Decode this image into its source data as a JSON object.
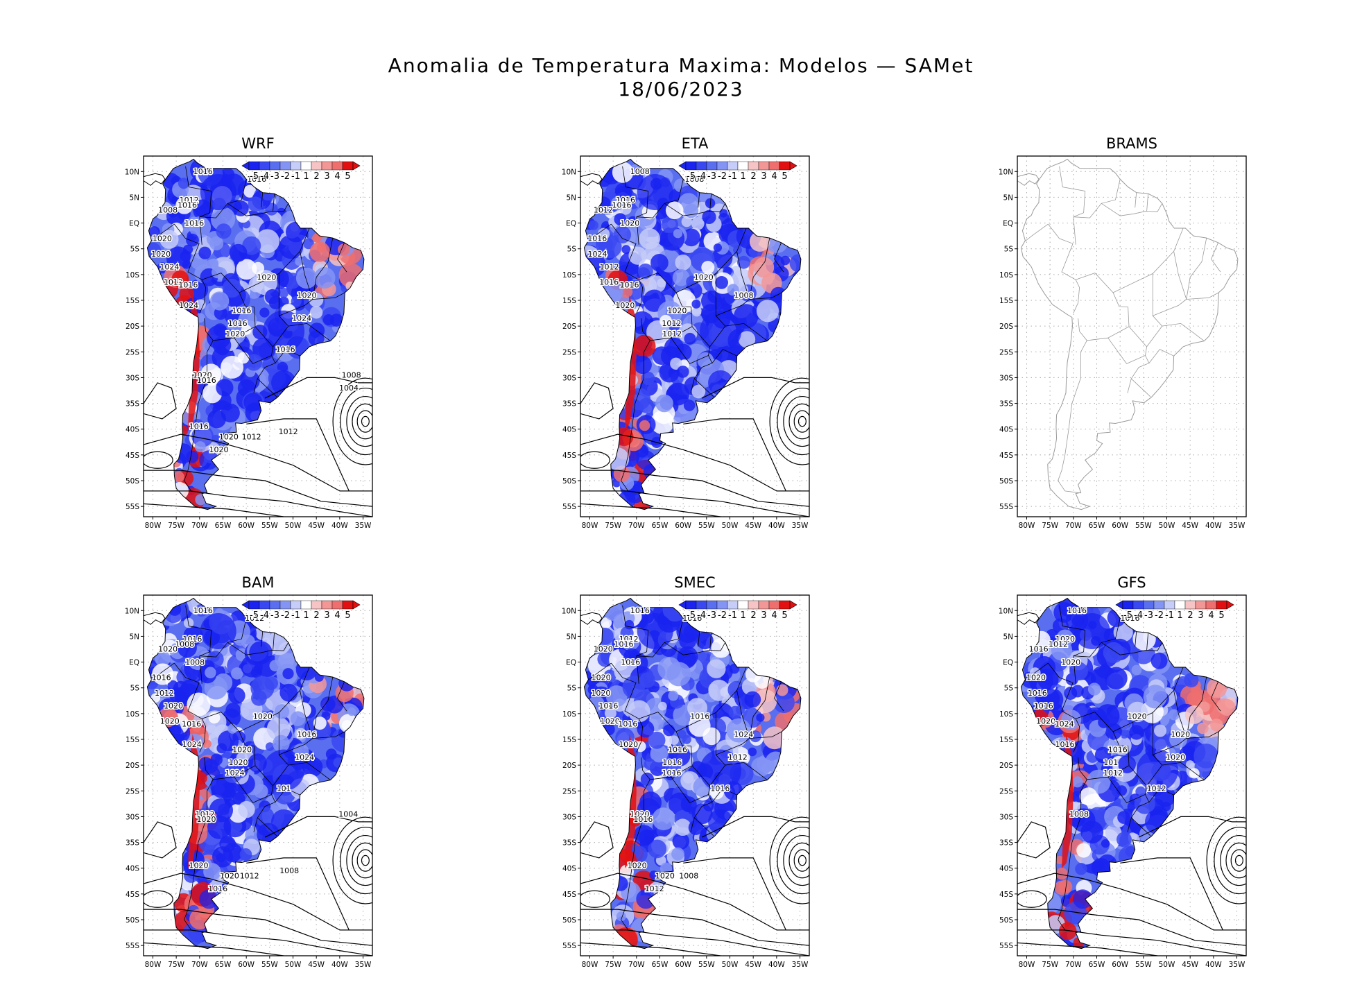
{
  "title": {
    "line1": "Anomalia de Temperatura Maxima: Modelos — SAMet",
    "line2": "18/06/2023"
  },
  "colors": {
    "strong_cold": "#1a23f0",
    "cold": "#5a6ef0",
    "light_cold": "#c6cdf8",
    "light_warm": "#f6c4c4",
    "warm": "#ef6f6f",
    "strong_warm": "#e21010",
    "isobar": "#000000",
    "empty_coast": "#9a9a9a"
  },
  "axes": {
    "lat_labels": [
      "10N",
      "5N",
      "EQ",
      "5S",
      "10S",
      "15S",
      "20S",
      "25S",
      "30S",
      "35S",
      "40S",
      "45S",
      "50S",
      "55S"
    ],
    "lon_labels": [
      "80W",
      "75W",
      "70W",
      "65W",
      "60W",
      "55W",
      "50W",
      "45W",
      "40W",
      "35W"
    ]
  },
  "colorbar": {
    "labels": [
      "-5",
      "-4",
      "-3",
      "-2",
      "-1",
      "1",
      "2",
      "3",
      "4",
      "5"
    ],
    "colors": [
      "#1a23f0",
      "#3a48f2",
      "#5a6ef0",
      "#8494f4",
      "#c6cdf8",
      "#ffffff",
      "#f6c4c4",
      "#f39696",
      "#ef6f6f",
      "#e21010"
    ]
  },
  "panels": [
    {
      "name": "WRF",
      "has_data": true,
      "warm_ne": 0.45,
      "isobars": [
        "1016",
        "1016",
        "1012",
        "1016",
        "1008",
        "1016",
        "1020",
        "1020",
        "1024",
        "1012",
        "1016",
        "1024",
        "1016",
        "1016",
        "1020",
        "1020",
        "1020",
        "1024",
        "1016",
        "1020",
        "1016",
        "1016",
        "1020",
        "1020",
        "1012",
        "1012",
        "1008",
        "1004"
      ]
    },
    {
      "name": "ETA",
      "has_data": true,
      "warm_ne": 0.35,
      "isobars": [
        "1008",
        "1008",
        "1016",
        "1016",
        "1012",
        "1020",
        "1016",
        "1024",
        "1012",
        "1016",
        "1016",
        "1020",
        "1020",
        "1012",
        "1012",
        "1020",
        "1008"
      ]
    },
    {
      "name": "BRAMS",
      "has_data": false,
      "warm_ne": 0,
      "isobars": []
    },
    {
      "name": "BAM",
      "has_data": true,
      "warm_ne": 0.2,
      "isobars": [
        "1016",
        "1012",
        "1016",
        "1008",
        "1020",
        "1008",
        "1016",
        "1012",
        "1020",
        "1020",
        "1016",
        "1024",
        "1020",
        "1020",
        "1024",
        "1020",
        "1016",
        "1024",
        "101",
        "1012",
        "1020",
        "1020",
        "1020",
        "1016",
        "1012",
        "1008",
        "1004"
      ]
    },
    {
      "name": "SMEC",
      "has_data": true,
      "warm_ne": 0.6,
      "isobars": [
        "1016",
        "1016",
        "1012",
        "1016",
        "1020",
        "1016",
        "1020",
        "1020",
        "1016",
        "1020",
        "1016",
        "1020",
        "1016",
        "1016",
        "1016",
        "1016",
        "1024",
        "1012",
        "1016",
        "1020",
        "1016",
        "1020",
        "1020",
        "1012",
        "1008"
      ]
    },
    {
      "name": "GFS",
      "has_data": true,
      "warm_ne": 0.85,
      "isobars": [
        "1016",
        "1016",
        "1020",
        "1012",
        "1016",
        "1020",
        "1020",
        "1016",
        "1016",
        "1020",
        "1024",
        "1016",
        "1016",
        "101",
        "1012",
        "1020",
        "1020",
        "1020",
        "1012",
        "1008"
      ]
    }
  ]
}
